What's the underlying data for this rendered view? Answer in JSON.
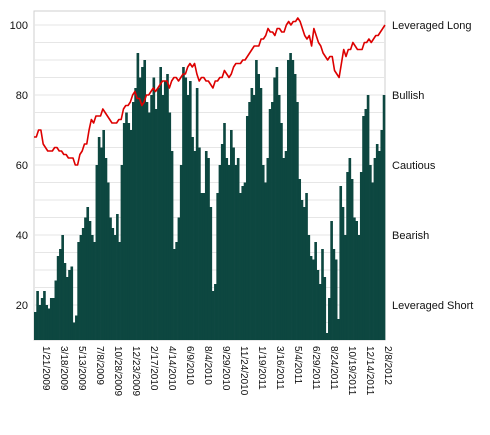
{
  "chart_data": {
    "type": "bar",
    "title": "",
    "xlabel": "",
    "ylabel": "",
    "ylim": [
      10,
      104
    ],
    "grid": true,
    "left_axis_ticks": [
      20,
      40,
      60,
      80,
      100
    ],
    "right_axis_labels": [
      {
        "value": 100,
        "label": "Leveraged Long"
      },
      {
        "value": 80,
        "label": "Bullish"
      },
      {
        "value": 60,
        "label": "Cautious"
      },
      {
        "value": 40,
        "label": "Bearish"
      },
      {
        "value": 20,
        "label": "Leveraged Short"
      }
    ],
    "x_tick_labels": [
      "1/21/2009",
      "3/18/2009",
      "5/13/2009",
      "7/8/2009",
      "10/28/2009",
      "12/23/2009",
      "2/17/2010",
      "4/14/2010",
      "6/9/2010",
      "8/4/2010",
      "9/29/2010",
      "11/24/2010",
      "1/19/2011",
      "3/16/2011",
      "5/4/2011",
      "6/29/2011",
      "8/24/2011",
      "10/19/2011",
      "12/14/2011",
      "2/8/2012"
    ],
    "series": [
      {
        "type": "bar",
        "color": "#0d4740",
        "values": [
          18,
          24,
          20,
          22,
          24,
          20,
          19,
          22,
          22,
          27,
          34,
          36,
          40,
          32,
          28,
          30,
          31,
          15,
          17,
          38,
          40,
          42,
          45,
          48,
          44,
          40,
          38,
          60,
          68,
          65,
          70,
          62,
          55,
          45,
          42,
          40,
          46,
          38,
          60,
          72,
          75,
          72,
          70,
          78,
          82,
          92,
          85,
          88,
          90,
          78,
          75,
          80,
          85,
          76,
          82,
          88,
          80,
          84,
          86,
          75,
          64,
          36,
          38,
          45,
          60,
          88,
          85,
          80,
          84,
          68,
          64,
          82,
          65,
          52,
          52,
          64,
          62,
          48,
          24,
          26,
          52,
          60,
          66,
          72,
          62,
          60,
          70,
          65,
          60,
          62,
          52,
          54,
          55,
          74,
          78,
          82,
          80,
          90,
          86,
          82,
          60,
          55,
          62,
          76,
          78,
          85,
          88,
          80,
          72,
          62,
          64,
          90,
          92,
          90,
          86,
          78,
          56,
          50,
          48,
          52,
          40,
          34,
          33,
          38,
          30,
          26,
          36,
          28,
          12,
          22,
          44,
          36,
          33,
          16,
          54,
          48,
          40,
          58,
          62,
          56,
          45,
          44,
          40,
          58,
          74,
          76,
          80,
          60,
          55,
          62,
          66,
          64,
          70,
          80
        ]
      },
      {
        "type": "line",
        "color": "#dd0000",
        "values": [
          68,
          68,
          70,
          70,
          66,
          65,
          64,
          64,
          64,
          65,
          65,
          64,
          64,
          63,
          63,
          62,
          62,
          62,
          60,
          60,
          63,
          64,
          66,
          66,
          70,
          73,
          72,
          74,
          74,
          74,
          76,
          75,
          74,
          73,
          72,
          72,
          72,
          73,
          73,
          76,
          77,
          77,
          78,
          80,
          81,
          79,
          79,
          77,
          78,
          80,
          80,
          81,
          82,
          81,
          82,
          83,
          84,
          84,
          84,
          82,
          84,
          85,
          85,
          84,
          85,
          86,
          86,
          88,
          89,
          88,
          89,
          86,
          84,
          85,
          85,
          84,
          84,
          83,
          82,
          84,
          84,
          85,
          85,
          87,
          86,
          85,
          86,
          88,
          89,
          89,
          89,
          90,
          90,
          91,
          92,
          93,
          94,
          94,
          94,
          96,
          96,
          97,
          99,
          98,
          98,
          97,
          99,
          99,
          98,
          98,
          100,
          101,
          100,
          101,
          101,
          102,
          101,
          99,
          97,
          96,
          97,
          94,
          99,
          97,
          95,
          94,
          92,
          91,
          90,
          91,
          91,
          87,
          86,
          85,
          89,
          93,
          91,
          93,
          93,
          95,
          94,
          93,
          93,
          93,
          95,
          95,
          96,
          95,
          96,
          97,
          97,
          98,
          99,
          100
        ]
      }
    ]
  }
}
